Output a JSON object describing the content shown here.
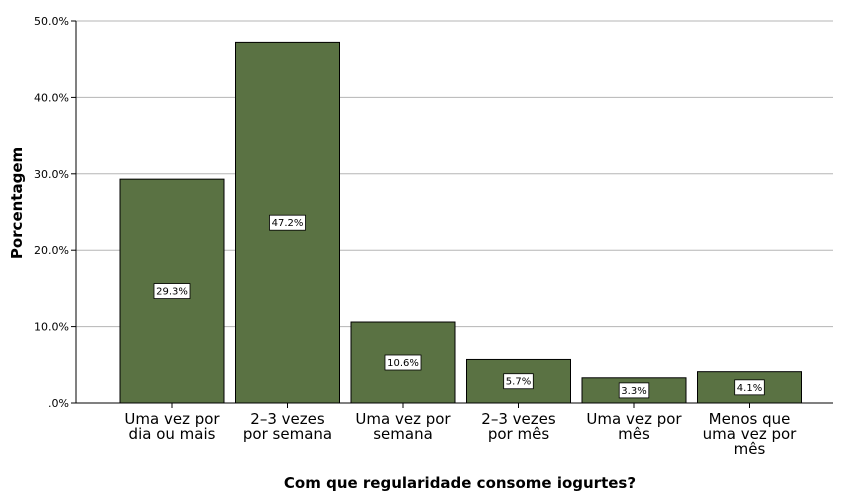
{
  "chart_data": {
    "type": "bar",
    "categories": [
      [
        "Uma vez por",
        "dia ou mais"
      ],
      [
        "2–3 vezes",
        "por semana"
      ],
      [
        "Uma vez por",
        "semana"
      ],
      [
        "2–3 vezes",
        "por mês"
      ],
      [
        "Uma vez por",
        "mês"
      ],
      [
        "Menos que",
        "uma vez por",
        "mês"
      ]
    ],
    "values": [
      29.3,
      47.2,
      10.6,
      5.7,
      3.3,
      4.1
    ],
    "data_labels": [
      "29.3%",
      "47.2%",
      "10.6%",
      "5.7%",
      "3.3%",
      "4.1%"
    ],
    "xlabel": "Com que regularidade consome iogurtes?",
    "ylabel": "Porcentagem",
    "ylim": [
      0,
      50
    ],
    "yticks": [
      0,
      10,
      20,
      30,
      40,
      50
    ],
    "ytick_labels": [
      ".0%",
      "10.0%",
      "20.0%",
      "30.0%",
      "40.0%",
      "50.0%"
    ],
    "grid": true,
    "bar_color": "#5a7243"
  }
}
